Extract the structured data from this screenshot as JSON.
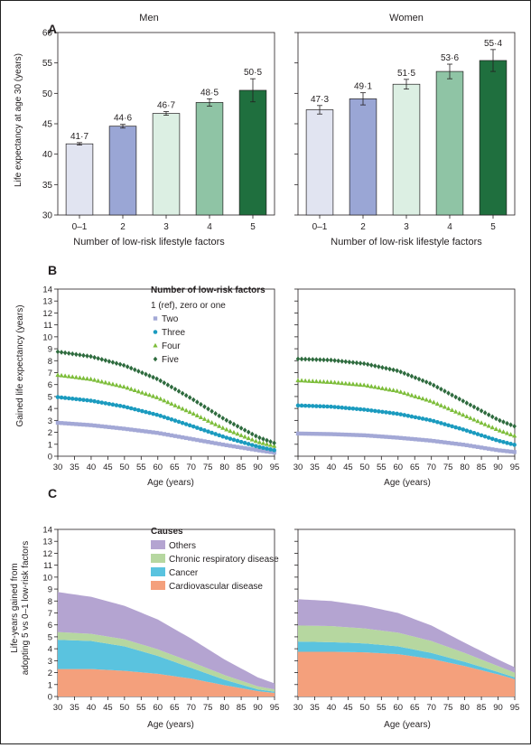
{
  "figure": {
    "panel_labels": [
      "A",
      "B",
      "C"
    ]
  },
  "chart_data": [
    {
      "id": "A-men",
      "type": "bar",
      "panel": "A",
      "title": "Men",
      "xlabel": "Number of low-risk lifestyle factors",
      "ylabel": "Life expectancy at age 30 (years)",
      "categories": [
        "0–1",
        "2",
        "3",
        "4",
        "5"
      ],
      "values": [
        41.7,
        44.6,
        46.7,
        48.5,
        50.5
      ],
      "value_labels": [
        "41·7",
        "44·6",
        "46·7",
        "48·5",
        "50·5"
      ],
      "error_low": [
        41.5,
        44.3,
        46.4,
        47.9,
        48.6
      ],
      "error_high": [
        41.9,
        44.9,
        47.0,
        49.1,
        52.4
      ],
      "ylim": [
        30,
        60
      ],
      "yticks": [
        30,
        35,
        40,
        45,
        50,
        55,
        60
      ],
      "colors": [
        "#e1e4f1",
        "#9aa6d5",
        "#dcefe3",
        "#8fc4a5",
        "#1f6f3e"
      ]
    },
    {
      "id": "A-women",
      "type": "bar",
      "panel": "A",
      "title": "Women",
      "xlabel": "Number of low-risk lifestyle factors",
      "ylabel": "",
      "categories": [
        "0–1",
        "2",
        "3",
        "4",
        "5"
      ],
      "values": [
        47.3,
        49.1,
        51.5,
        53.6,
        55.4
      ],
      "value_labels": [
        "47·3",
        "49·1",
        "51·5",
        "53·6",
        "55·4"
      ],
      "error_low": [
        46.6,
        48.1,
        50.7,
        52.4,
        53.6
      ],
      "error_high": [
        48.0,
        50.1,
        52.3,
        54.8,
        57.2
      ],
      "ylim": [
        30,
        60
      ],
      "yticks": [
        30,
        35,
        40,
        45,
        50,
        55,
        60
      ],
      "colors": [
        "#e1e4f1",
        "#9aa6d5",
        "#dcefe3",
        "#8fc4a5",
        "#1f6f3e"
      ]
    },
    {
      "id": "B-men",
      "type": "scatter",
      "panel": "B",
      "xlabel": "Age (years)",
      "ylabel": "Gained life expectancy (years)",
      "xlim": [
        30,
        95
      ],
      "ylim": [
        0,
        14
      ],
      "xticks": [
        30,
        35,
        40,
        45,
        50,
        55,
        60,
        65,
        70,
        75,
        80,
        85,
        90,
        95
      ],
      "yticks": [
        0,
        1,
        2,
        3,
        4,
        5,
        6,
        7,
        8,
        9,
        10,
        11,
        12,
        13,
        14
      ],
      "legend_title": "Number of low-risk factors",
      "legend_note": "1 (ref), zero or one",
      "legend_position": "top-right",
      "series": [
        {
          "name": "Two",
          "marker": "square",
          "color": "#a3a8d6",
          "x": [
            30,
            40,
            50,
            60,
            70,
            80,
            90,
            95
          ],
          "y": [
            2.8,
            2.6,
            2.3,
            1.95,
            1.45,
            0.95,
            0.5,
            0.3
          ]
        },
        {
          "name": "Three",
          "marker": "circle",
          "color": "#1b9bbf",
          "x": [
            30,
            40,
            50,
            60,
            70,
            80,
            90,
            95
          ],
          "y": [
            4.95,
            4.65,
            4.15,
            3.45,
            2.55,
            1.6,
            0.8,
            0.5
          ]
        },
        {
          "name": "Four",
          "marker": "triangle",
          "color": "#7dbd3a",
          "x": [
            30,
            40,
            50,
            60,
            70,
            80,
            90,
            95
          ],
          "y": [
            6.8,
            6.45,
            5.8,
            4.9,
            3.65,
            2.3,
            1.2,
            0.85
          ]
        },
        {
          "name": "Five",
          "marker": "diamond",
          "color": "#2e6b3e",
          "x": [
            30,
            40,
            50,
            60,
            70,
            80,
            90,
            95
          ],
          "y": [
            8.75,
            8.35,
            7.6,
            6.45,
            4.85,
            3.1,
            1.6,
            1.1
          ]
        }
      ]
    },
    {
      "id": "B-women",
      "type": "scatter",
      "panel": "B",
      "xlabel": "Age (years)",
      "ylabel": "",
      "xlim": [
        30,
        95
      ],
      "ylim": [
        0,
        14
      ],
      "xticks": [
        30,
        35,
        40,
        45,
        50,
        55,
        60,
        65,
        70,
        75,
        80,
        85,
        90,
        95
      ],
      "series": [
        {
          "name": "Two",
          "marker": "square",
          "color": "#a3a8d6",
          "x": [
            30,
            40,
            50,
            60,
            70,
            80,
            90,
            95
          ],
          "y": [
            1.9,
            1.85,
            1.75,
            1.55,
            1.3,
            0.95,
            0.5,
            0.35
          ]
        },
        {
          "name": "Three",
          "marker": "circle",
          "color": "#1b9bbf",
          "x": [
            30,
            40,
            50,
            60,
            70,
            80,
            90,
            95
          ],
          "y": [
            4.25,
            4.15,
            3.9,
            3.55,
            3.0,
            2.2,
            1.3,
            0.95
          ]
        },
        {
          "name": "Four",
          "marker": "triangle",
          "color": "#7dbd3a",
          "x": [
            30,
            40,
            50,
            60,
            70,
            80,
            90,
            95
          ],
          "y": [
            6.35,
            6.2,
            5.95,
            5.45,
            4.6,
            3.4,
            2.2,
            1.7
          ]
        },
        {
          "name": "Five",
          "marker": "diamond",
          "color": "#2e6b3e",
          "x": [
            30,
            40,
            50,
            60,
            70,
            80,
            90,
            95
          ],
          "y": [
            8.15,
            8.05,
            7.75,
            7.15,
            6.05,
            4.55,
            3.05,
            2.5
          ]
        }
      ]
    },
    {
      "id": "C-men",
      "type": "area",
      "panel": "C",
      "stacked": true,
      "xlabel": "Age (years)",
      "ylabel": "Life-years gained from adopting 5 vs 0–1 low-risk factors",
      "xlim": [
        30,
        95
      ],
      "ylim": [
        0,
        14
      ],
      "xticks": [
        30,
        35,
        40,
        45,
        50,
        55,
        60,
        65,
        70,
        75,
        80,
        85,
        90,
        95
      ],
      "yticks": [
        0,
        1,
        2,
        3,
        4,
        5,
        6,
        7,
        8,
        9,
        10,
        11,
        12,
        13,
        14
      ],
      "legend_title": "Causes",
      "legend_position": "top-right",
      "x": [
        30,
        40,
        50,
        60,
        70,
        80,
        90,
        95
      ],
      "series": [
        {
          "name": "Cardiovascular disease",
          "color": "#f4a07c",
          "values": [
            2.3,
            2.3,
            2.15,
            1.9,
            1.5,
            0.95,
            0.45,
            0.3
          ]
        },
        {
          "name": "Cancer",
          "color": "#5ac3df",
          "values": [
            2.45,
            2.35,
            2.05,
            1.5,
            0.9,
            0.45,
            0.15,
            0.1
          ]
        },
        {
          "name": "Chronic respiratory disease",
          "color": "#b6d7a0",
          "values": [
            0.65,
            0.6,
            0.6,
            0.55,
            0.5,
            0.4,
            0.25,
            0.2
          ]
        },
        {
          "name": "Others",
          "color": "#b4a4d1",
          "values": [
            3.35,
            3.1,
            2.8,
            2.5,
            1.95,
            1.3,
            0.75,
            0.5
          ]
        }
      ]
    },
    {
      "id": "C-women",
      "type": "area",
      "panel": "C",
      "stacked": true,
      "xlabel": "Age (years)",
      "ylabel": "",
      "xlim": [
        30,
        95
      ],
      "ylim": [
        0,
        14
      ],
      "xticks": [
        30,
        35,
        40,
        45,
        50,
        55,
        60,
        65,
        70,
        75,
        80,
        85,
        90,
        95
      ],
      "x": [
        30,
        40,
        50,
        60,
        70,
        80,
        90,
        95
      ],
      "series": [
        {
          "name": "Cardiovascular disease",
          "color": "#f4a07c",
          "values": [
            3.75,
            3.75,
            3.7,
            3.55,
            3.15,
            2.55,
            1.85,
            1.45
          ]
        },
        {
          "name": "Cancer",
          "color": "#5ac3df",
          "values": [
            0.85,
            0.8,
            0.75,
            0.65,
            0.5,
            0.35,
            0.2,
            0.15
          ]
        },
        {
          "name": "Chronic respiratory disease",
          "color": "#b6d7a0",
          "values": [
            1.35,
            1.35,
            1.25,
            1.15,
            1.0,
            0.75,
            0.5,
            0.4
          ]
        },
        {
          "name": "Others",
          "color": "#b4a4d1",
          "values": [
            2.2,
            2.1,
            1.9,
            1.65,
            1.3,
            0.85,
            0.55,
            0.45
          ]
        }
      ]
    }
  ]
}
